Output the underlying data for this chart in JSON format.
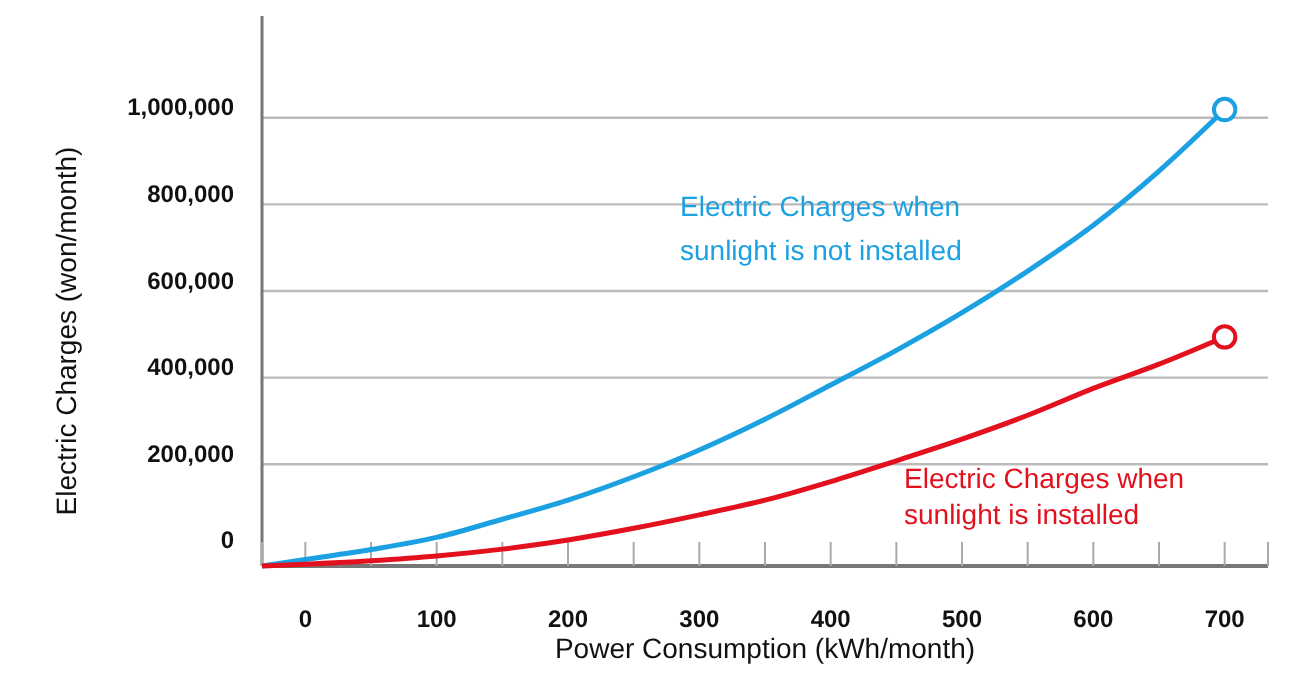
{
  "chart_data": {
    "type": "line",
    "xlabel": "Power Consumption (kWh/month)",
    "ylabel": "Electric Charges (won/month)",
    "xlim": [
      -33,
      733
    ],
    "ylim": [
      -35000,
      1235000
    ],
    "xticks": [
      {
        "value": -33,
        "label": null
      },
      0,
      {
        "value": 50,
        "label": null
      },
      100,
      {
        "value": 150,
        "label": null
      },
      200,
      {
        "value": 250,
        "label": null
      },
      300,
      {
        "value": 350,
        "label": null
      },
      400,
      {
        "value": 450,
        "label": null
      },
      500,
      {
        "value": 550,
        "label": null
      },
      600,
      {
        "value": 650,
        "label": null
      },
      700,
      {
        "value": 733,
        "label": null
      }
    ],
    "yticks": [
      {
        "value": 0,
        "label": "0"
      },
      {
        "value": 200000,
        "label": "200,000"
      },
      {
        "value": 400000,
        "label": "400,000"
      },
      {
        "value": 600000,
        "label": "600,000"
      },
      {
        "value": 800000,
        "label": "800,000"
      },
      {
        "value": 1000000,
        "label": "1,000,000"
      }
    ],
    "grid": "y",
    "line_style": "solid",
    "series": [
      {
        "name": "Electric Charges when sunlight is not installed",
        "color": "#1ba1e2",
        "marker": "none",
        "x": [
          -33,
          0,
          50,
          100,
          150,
          200,
          250,
          300,
          350,
          400,
          450,
          500,
          550,
          600,
          650,
          700
        ],
        "values": [
          -35000,
          -20000,
          3000,
          31000,
          73000,
          117000,
          171000,
          233000,
          304000,
          383000,
          463000,
          550000,
          646000,
          752000,
          877000,
          1019000
        ]
      },
      {
        "name": "Electric Charges when sunlight is installed",
        "color": "#e3101e",
        "marker": "none",
        "x": [
          -33,
          0,
          50,
          100,
          150,
          200,
          250,
          300,
          350,
          400,
          450,
          500,
          550,
          600,
          650,
          700
        ],
        "values": [
          -35000,
          -31000,
          -23000,
          -12000,
          4000,
          25000,
          52000,
          83000,
          117000,
          160000,
          208000,
          258000,
          313000,
          375000,
          431000,
          494000
        ]
      },
      {
        "type": "scatter",
        "color": "#1ba1e2",
        "marker": "circle",
        "x": [
          700
        ],
        "values": [
          1019000
        ]
      },
      {
        "type": "scatter",
        "color": "#e3101e",
        "marker": "circle",
        "x": [
          700
        ],
        "values": [
          494000
        ]
      }
    ]
  }
}
